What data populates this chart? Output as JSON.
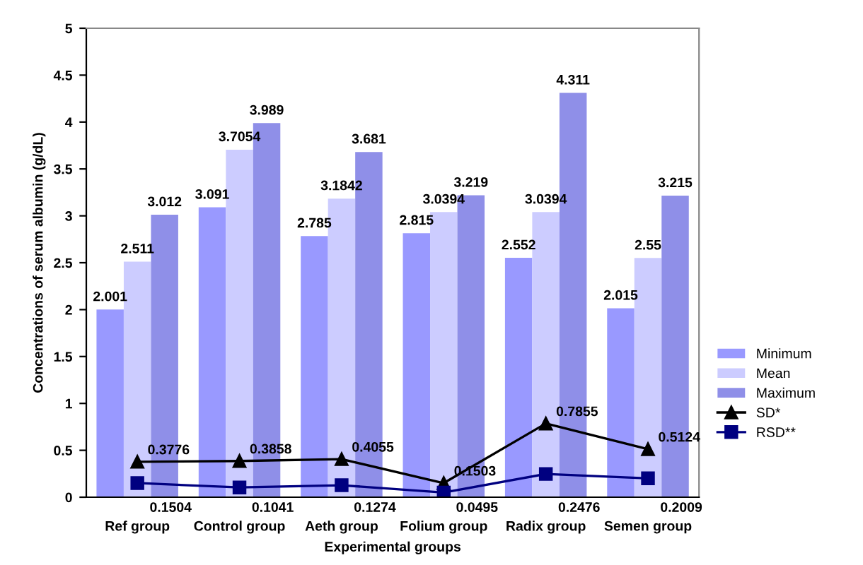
{
  "chart_data": {
    "type": "bar",
    "xlabel": "Experimental groups",
    "ylabel": "Concentrations of serum albumin (g/dL)",
    "categories": [
      "Ref group",
      "Control group",
      "Aeth group",
      "Folium group",
      "Radix group",
      "Semen group"
    ],
    "series": [
      {
        "name": "Minimum",
        "color": "#9999ff",
        "values": [
          2.001,
          3.091,
          2.785,
          2.815,
          2.552,
          2.015
        ]
      },
      {
        "name": "Mean",
        "color": "#ccccff",
        "values": [
          2.511,
          3.7054,
          3.1842,
          3.0394,
          3.0394,
          2.55
        ]
      },
      {
        "name": "Maximum",
        "color": "#8f8fe8",
        "values": [
          3.012,
          3.989,
          3.681,
          3.219,
          4.311,
          3.215
        ]
      },
      {
        "name": "SD*",
        "type": "line",
        "color": "#000000",
        "marker": "triangle",
        "values": [
          0.3776,
          0.3858,
          0.4055,
          0.1503,
          0.7855,
          0.5124
        ]
      },
      {
        "name": "RSD**",
        "type": "line",
        "color": "#000080",
        "marker": "square",
        "values": [
          0.1504,
          0.1041,
          0.1274,
          0.0495,
          0.2476,
          0.2009
        ]
      }
    ],
    "ylim": [
      0,
      5
    ],
    "yticks": [
      0,
      0.5,
      1,
      1.5,
      2,
      2.5,
      3,
      3.5,
      4,
      4.5,
      5
    ],
    "data_labels": true,
    "grid": false,
    "legend": "right"
  }
}
